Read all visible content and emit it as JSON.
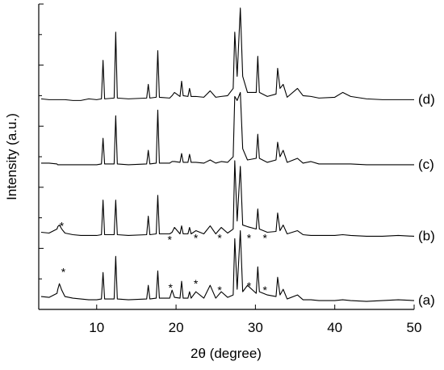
{
  "chart_data": {
    "type": "line",
    "x_label": "2θ (degree)",
    "y_label": "Intensity (a.u.)",
    "xlim": [
      2.7,
      50
    ],
    "xticks": [
      10,
      20,
      30,
      40,
      50
    ],
    "ylim": [
      0,
      380
    ],
    "yticks": [
      38,
      76,
      114,
      152,
      190,
      228,
      266,
      304,
      342,
      380
    ],
    "color": "#000000",
    "x": [
      3,
      4,
      5,
      5.1,
      5.3,
      5.6,
      6,
      7,
      8,
      9,
      10,
      10.6,
      10.8,
      11,
      12.2,
      12.4,
      12.6,
      14,
      16.3,
      16.5,
      16.7,
      17.5,
      17.7,
      17.9,
      19.2,
      19.5,
      19.8,
      20.5,
      20.7,
      20.9,
      21.5,
      21.7,
      21.9,
      22.5,
      23.5,
      24.3,
      25,
      25.7,
      26.5,
      27.2,
      27.4,
      27.7,
      28.1,
      28.4,
      29,
      30.1,
      30.3,
      30.5,
      31.5,
      32.6,
      32.8,
      33.1,
      33.5,
      34,
      35.3,
      36,
      37,
      38,
      40,
      41,
      42,
      44,
      46,
      48,
      50
    ],
    "series": [
      {
        "name": "(a)",
        "values": [
          16,
          15,
          20,
          25,
          32,
          24,
          16,
          14,
          13,
          12,
          12,
          13,
          46,
          13,
          13,
          66,
          13,
          12,
          13,
          30,
          13,
          14,
          48,
          14,
          14,
          24,
          15,
          14,
          35,
          14,
          14,
          22,
          14,
          22,
          14,
          30,
          14,
          22,
          15,
          18,
          88,
          25,
          98,
          22,
          30,
          20,
          53,
          22,
          18,
          16,
          40,
          18,
          25,
          13,
          18,
          12,
          12,
          11,
          11,
          12,
          11,
          10,
          11,
          12,
          11
        ]
      },
      {
        "name": "(b)",
        "values": [
          96,
          95,
          100,
          103,
          105,
          100,
          95,
          93,
          92,
          92,
          92,
          93,
          136,
          93,
          93,
          136,
          93,
          92,
          93,
          116,
          93,
          94,
          142,
          94,
          94,
          96,
          102,
          94,
          104,
          94,
          94,
          102,
          94,
          98,
          94,
          104,
          94,
          102,
          95,
          100,
          185,
          110,
          178,
          105,
          103,
          100,
          125,
          100,
          96,
          97,
          120,
          98,
          105,
          94,
          98,
          93,
          92,
          92,
          92,
          93,
          92,
          91,
          91,
          92,
          91
        ]
      },
      {
        "name": "(c)",
        "values": [
          182,
          182,
          181,
          180,
          180,
          180,
          180,
          180,
          180,
          180,
          180,
          181,
          213,
          181,
          181,
          241,
          181,
          180,
          181,
          198,
          181,
          182,
          248,
          182,
          182,
          184,
          184,
          183,
          194,
          183,
          183,
          193,
          183,
          183,
          182,
          186,
          182,
          184,
          183,
          190,
          265,
          260,
          270,
          200,
          186,
          188,
          218,
          188,
          183,
          186,
          208,
          190,
          198,
          183,
          188,
          182,
          184,
          181,
          181,
          181,
          181,
          180,
          180,
          180,
          180
        ]
      },
      {
        "name": "(d)",
        "values": [
          262,
          261,
          261,
          261,
          261,
          261,
          261,
          260,
          260,
          262,
          261,
          262,
          310,
          262,
          263,
          345,
          263,
          262,
          263,
          280,
          263,
          264,
          322,
          264,
          263,
          266,
          270,
          265,
          284,
          266,
          265,
          275,
          265,
          265,
          264,
          272,
          264,
          265,
          266,
          275,
          345,
          290,
          375,
          290,
          270,
          270,
          315,
          270,
          265,
          268,
          300,
          275,
          280,
          264,
          275,
          266,
          265,
          263,
          264,
          270,
          265,
          262,
          261,
          261,
          261
        ]
      }
    ],
    "annotations": [
      {
        "text": "*",
        "x": 5.8,
        "y": 50
      },
      {
        "text": "*",
        "x": 19.3,
        "y": 30
      },
      {
        "text": "*",
        "x": 22.5,
        "y": 35
      },
      {
        "text": "*",
        "x": 25.5,
        "y": 27
      },
      {
        "text": "*",
        "x": 29.2,
        "y": 32
      },
      {
        "text": "*",
        "x": 31.2,
        "y": 27
      },
      {
        "text": "*",
        "x": 5.6,
        "y": 107
      },
      {
        "text": "*",
        "x": 19.2,
        "y": 90
      },
      {
        "text": "*",
        "x": 22.5,
        "y": 92
      },
      {
        "text": "*",
        "x": 25.5,
        "y": 92
      },
      {
        "text": "*",
        "x": 29.2,
        "y": 92
      },
      {
        "text": "*",
        "x": 31.2,
        "y": 92
      }
    ]
  }
}
